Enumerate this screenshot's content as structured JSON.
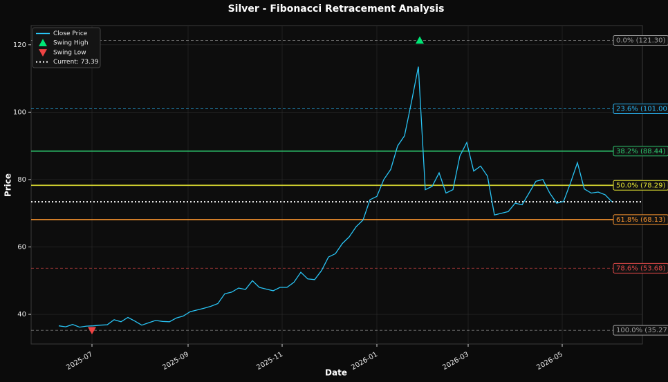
{
  "chart_data": {
    "type": "line",
    "title": "Silver - Fibonacci Retracement Analysis",
    "x_label": "Date",
    "y_label": "Price",
    "xlim": [
      -4,
      84.4
    ],
    "ylim": [
      31.2,
      125.7
    ],
    "xticks": [
      {
        "value": 4.8,
        "label": "2025-07"
      },
      {
        "value": 18.7,
        "label": "2025-09"
      },
      {
        "value": 32.3,
        "label": "2025-11"
      },
      {
        "value": 46,
        "label": "2026-01"
      },
      {
        "value": 59.2,
        "label": "2026-03"
      },
      {
        "value": 72.8,
        "label": "2026-05"
      }
    ],
    "yticks": [
      40,
      60,
      80,
      100,
      120
    ],
    "grid": true,
    "legend_position": "upper-left",
    "series": [
      {
        "name": "Close Price",
        "color": "#29c5f6",
        "x": [
          0,
          1,
          2,
          3,
          4,
          5,
          6,
          7,
          8,
          9,
          10,
          11,
          12,
          13,
          14,
          15,
          16,
          17,
          18,
          19,
          20,
          21,
          22,
          23,
          24,
          25,
          26,
          27,
          28,
          29,
          30,
          31,
          32,
          33,
          34,
          35,
          36,
          37,
          38,
          39,
          40,
          41,
          42,
          43,
          44,
          45,
          46,
          47,
          48,
          49,
          50,
          51,
          52,
          53,
          54,
          55,
          56,
          57,
          58,
          59,
          60,
          61,
          62,
          63,
          64,
          65,
          66,
          67,
          68,
          69,
          70,
          71,
          72,
          73,
          74,
          75,
          76,
          77,
          78,
          79,
          80
        ],
        "values": [
          36.6,
          36.3,
          37.0,
          36.2,
          36.5,
          36.6,
          36.8,
          36.9,
          38.4,
          37.8,
          39.1,
          38.0,
          36.8,
          37.5,
          38.2,
          37.9,
          37.8,
          38.9,
          39.5,
          40.8,
          41.3,
          41.8,
          42.4,
          43.2,
          46.1,
          46.6,
          47.8,
          47.4,
          50.0,
          48.0,
          47.5,
          47.0,
          48.0,
          48.0,
          49.5,
          52.5,
          50.5,
          50.3,
          53.0,
          57.0,
          58.0,
          61.0,
          63.0,
          66.0,
          68.0,
          74.0,
          75.0,
          80.0,
          83.0,
          90.0,
          93.0,
          103.0,
          113.5,
          77.0,
          78.0,
          82.0,
          76.0,
          77.0,
          87.0,
          91.0,
          82.5,
          84.0,
          81.0,
          69.5,
          70.0,
          70.5,
          73.0,
          72.5,
          76.0,
          79.5,
          80.0,
          76.0,
          73.0,
          73.5,
          79.0,
          85.0,
          77.2,
          76.0,
          76.3,
          75.5,
          73.4
        ]
      },
      {
        "name": "Swing High",
        "color": "#00e676",
        "marker": "triangle-up",
        "x": [
          52.2
        ],
        "values": [
          121.3
        ]
      },
      {
        "name": "Swing Low",
        "color": "#ef4444",
        "marker": "triangle-down",
        "x": [
          4.8
        ],
        "values": [
          35.27
        ]
      }
    ],
    "current": {
      "name": "Current: 73.39",
      "value": 73.39,
      "color": "#ffffff"
    },
    "fib_levels": [
      {
        "label": "0.0% (121.30)",
        "value": 121.3,
        "color": "#9e9e9e",
        "style": "dashed"
      },
      {
        "label": "23.6% (101.00)",
        "value": 101.0,
        "color": "#29b6f6",
        "style": "dashed"
      },
      {
        "label": "38.2% (88.44)",
        "value": 88.44,
        "color": "#2ecc71",
        "style": "solid"
      },
      {
        "label": "50.0% (78.29)",
        "value": 78.29,
        "color": "#e6e633",
        "style": "solid"
      },
      {
        "label": "61.8% (68.13)",
        "value": 68.13,
        "color": "#f5922f",
        "style": "solid"
      },
      {
        "label": "78.6% (53.68)",
        "value": 53.68,
        "color": "#e04848",
        "style": "dashed"
      },
      {
        "label": "100.0% (35.27)",
        "value": 35.27,
        "color": "#9e9e9e",
        "style": "dashed"
      }
    ]
  }
}
